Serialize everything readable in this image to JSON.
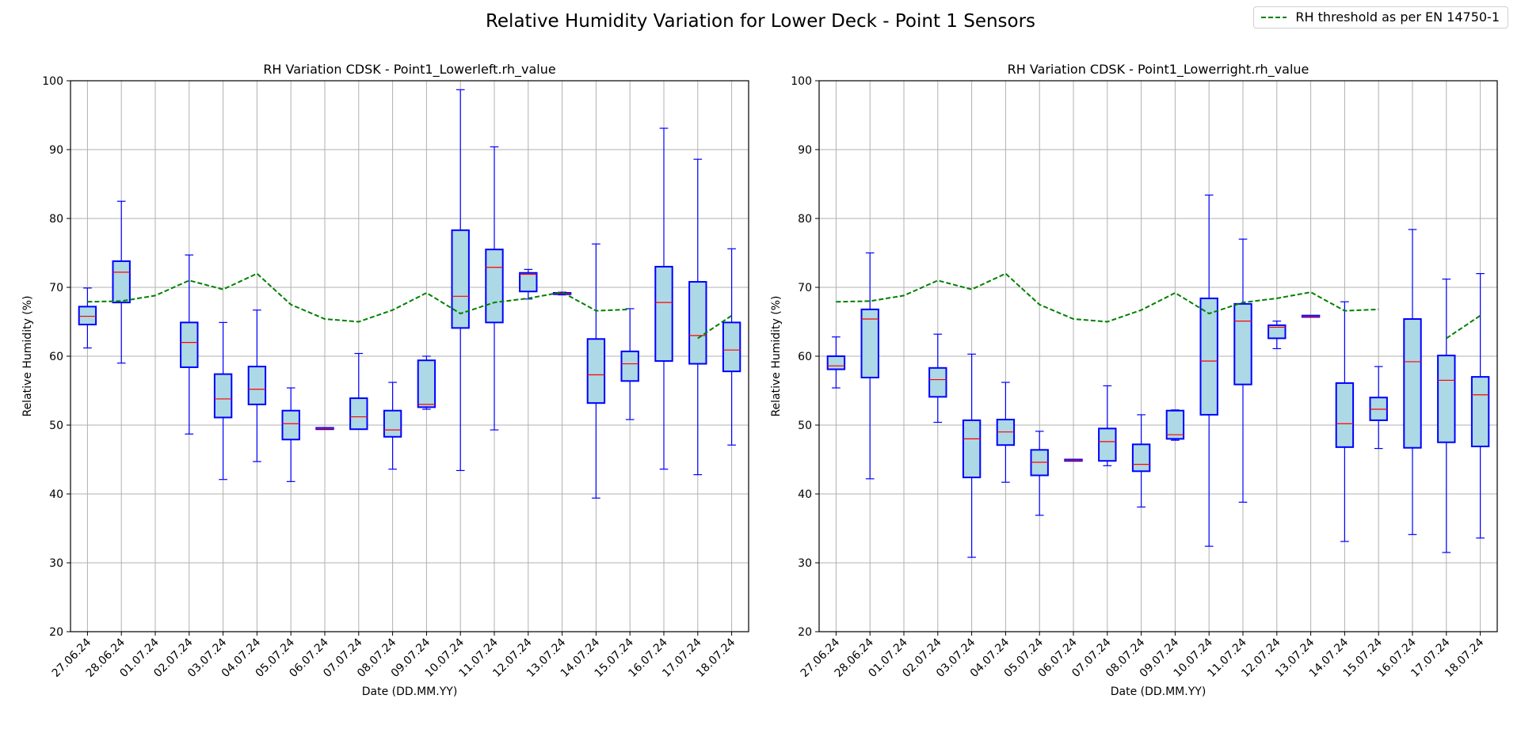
{
  "suptitle": "Relative Humidity Variation for Lower Deck - Point 1 Sensors",
  "legend": {
    "label": "RH threshold as per EN 14750-1",
    "color": "#008000",
    "placement": "upper right"
  },
  "style": {
    "box_fill": "#add8e6",
    "box_edge": "#0000ff",
    "median": "#ff0000",
    "grid": "#b0b0b0"
  },
  "chart_data": [
    {
      "type": "box",
      "title": "RH Variation CDSK - Point1_Lowerleft.rh_value",
      "xlabel": "Date (DD.MM.YY)",
      "ylabel": "Relative Humidity (%)",
      "ylim": [
        20,
        100
      ],
      "yticks": [
        20,
        30,
        40,
        50,
        60,
        70,
        80,
        90,
        100
      ],
      "grid": true,
      "categories": [
        "27.06.24",
        "28.06.24",
        "01.07.24",
        "02.07.24",
        "03.07.24",
        "04.07.24",
        "05.07.24",
        "06.07.24",
        "07.07.24",
        "08.07.24",
        "09.07.24",
        "10.07.24",
        "11.07.24",
        "12.07.24",
        "13.07.24",
        "14.07.24",
        "15.07.24",
        "16.07.24",
        "17.07.24",
        "18.07.24"
      ],
      "boxes": [
        {
          "whislo": 61.2,
          "q1": 64.6,
          "med": 65.8,
          "q3": 67.2,
          "whishi": 69.9
        },
        {
          "whislo": 59.0,
          "q1": 67.8,
          "med": 72.2,
          "q3": 73.8,
          "whishi": 82.5
        },
        null,
        {
          "whislo": 48.7,
          "q1": 58.4,
          "med": 62.0,
          "q3": 64.9,
          "whishi": 74.7
        },
        {
          "whislo": 42.1,
          "q1": 51.1,
          "med": 53.8,
          "q3": 57.4,
          "whishi": 64.9
        },
        {
          "whislo": 44.7,
          "q1": 53.0,
          "med": 55.2,
          "q3": 58.5,
          "whishi": 66.7
        },
        {
          "whislo": 41.8,
          "q1": 47.9,
          "med": 50.2,
          "q3": 52.1,
          "whishi": 55.4
        },
        {
          "whislo": 49.4,
          "q1": 49.4,
          "med": 49.5,
          "q3": 49.6,
          "whishi": 49.6
        },
        {
          "whislo": 49.4,
          "q1": 49.4,
          "med": 51.2,
          "q3": 53.9,
          "whishi": 60.4
        },
        {
          "whislo": 43.6,
          "q1": 48.3,
          "med": 49.3,
          "q3": 52.1,
          "whishi": 56.2
        },
        {
          "whislo": 52.3,
          "q1": 52.6,
          "med": 53.0,
          "q3": 59.4,
          "whishi": 60.0
        },
        {
          "whislo": 43.4,
          "q1": 64.1,
          "med": 68.7,
          "q3": 78.3,
          "whishi": 98.7
        },
        {
          "whislo": 49.3,
          "q1": 64.9,
          "med": 72.9,
          "q3": 75.5,
          "whishi": 90.4
        },
        {
          "whislo": 68.3,
          "q1": 69.4,
          "med": 71.9,
          "q3": 72.1,
          "whishi": 72.6
        },
        {
          "whislo": 68.9,
          "q1": 69.0,
          "med": 69.1,
          "q3": 69.2,
          "whishi": 69.3
        },
        {
          "whislo": 39.4,
          "q1": 53.2,
          "med": 57.3,
          "q3": 62.5,
          "whishi": 76.3
        },
        {
          "whislo": 50.8,
          "q1": 56.4,
          "med": 58.9,
          "q3": 60.7,
          "whishi": 66.9
        },
        {
          "whislo": 43.6,
          "q1": 59.3,
          "med": 67.8,
          "q3": 73.0,
          "whishi": 93.1
        },
        {
          "whislo": 42.8,
          "q1": 58.9,
          "med": 63.0,
          "q3": 70.8,
          "whishi": 88.6
        },
        {
          "whislo": 47.1,
          "q1": 57.8,
          "med": 60.9,
          "q3": 64.9,
          "whishi": 75.6
        }
      ],
      "threshold": [
        67.9,
        68.0,
        68.8,
        71.0,
        69.7,
        72.0,
        67.5,
        65.4,
        65.0,
        66.7,
        69.2,
        66.2,
        67.8,
        68.4,
        69.3,
        66.6,
        66.8,
        null,
        62.6,
        65.9
      ]
    },
    {
      "type": "box",
      "title": "RH Variation CDSK - Point1_Lowerright.rh_value",
      "xlabel": "Date (DD.MM.YY)",
      "ylabel": "Relative Humidity (%)",
      "ylim": [
        20,
        100
      ],
      "yticks": [
        20,
        30,
        40,
        50,
        60,
        70,
        80,
        90,
        100
      ],
      "grid": true,
      "categories": [
        "27.06.24",
        "28.06.24",
        "01.07.24",
        "02.07.24",
        "03.07.24",
        "04.07.24",
        "05.07.24",
        "06.07.24",
        "07.07.24",
        "08.07.24",
        "09.07.24",
        "10.07.24",
        "11.07.24",
        "12.07.24",
        "13.07.24",
        "14.07.24",
        "15.07.24",
        "16.07.24",
        "17.07.24",
        "18.07.24"
      ],
      "boxes": [
        {
          "whislo": 55.4,
          "q1": 58.1,
          "med": 58.6,
          "q3": 60.0,
          "whishi": 62.8
        },
        {
          "whislo": 42.2,
          "q1": 56.9,
          "med": 65.4,
          "q3": 66.8,
          "whishi": 75.0
        },
        null,
        {
          "whislo": 50.4,
          "q1": 54.1,
          "med": 56.6,
          "q3": 58.3,
          "whishi": 63.2
        },
        {
          "whislo": 30.8,
          "q1": 42.4,
          "med": 48.0,
          "q3": 50.7,
          "whishi": 60.3
        },
        {
          "whislo": 41.7,
          "q1": 47.1,
          "med": 49.0,
          "q3": 50.8,
          "whishi": 56.2
        },
        {
          "whislo": 36.9,
          "q1": 42.7,
          "med": 44.6,
          "q3": 46.4,
          "whishi": 49.1
        },
        {
          "whislo": 44.8,
          "q1": 44.8,
          "med": 44.9,
          "q3": 45.0,
          "whishi": 45.0
        },
        {
          "whislo": 44.1,
          "q1": 44.8,
          "med": 47.6,
          "q3": 49.5,
          "whishi": 55.7
        },
        {
          "whislo": 38.1,
          "q1": 43.3,
          "med": 44.3,
          "q3": 47.2,
          "whishi": 51.5
        },
        {
          "whislo": 47.8,
          "q1": 48.0,
          "med": 48.6,
          "q3": 52.1,
          "whishi": 52.2
        },
        {
          "whislo": 32.4,
          "q1": 51.5,
          "med": 59.3,
          "q3": 68.4,
          "whishi": 83.4
        },
        {
          "whislo": 38.8,
          "q1": 55.9,
          "med": 65.1,
          "q3": 67.6,
          "whishi": 77.0
        },
        {
          "whislo": 61.1,
          "q1": 62.6,
          "med": 64.2,
          "q3": 64.5,
          "whishi": 65.1
        },
        {
          "whislo": 65.7,
          "q1": 65.7,
          "med": 65.8,
          "q3": 65.9,
          "whishi": 65.9
        },
        {
          "whislo": 33.1,
          "q1": 46.8,
          "med": 50.2,
          "q3": 56.1,
          "whishi": 67.9
        },
        {
          "whislo": 46.6,
          "q1": 50.7,
          "med": 52.3,
          "q3": 54.0,
          "whishi": 58.5
        },
        {
          "whislo": 34.1,
          "q1": 46.7,
          "med": 59.2,
          "q3": 65.4,
          "whishi": 78.4
        },
        {
          "whislo": 31.5,
          "q1": 47.5,
          "med": 56.5,
          "q3": 60.1,
          "whishi": 71.2
        },
        {
          "whislo": 33.6,
          "q1": 46.9,
          "med": 54.4,
          "q3": 57.0,
          "whishi": 72.0
        }
      ],
      "threshold": [
        67.9,
        68.0,
        68.8,
        71.0,
        69.7,
        72.0,
        67.5,
        65.4,
        65.0,
        66.7,
        69.2,
        66.2,
        67.8,
        68.4,
        69.3,
        66.6,
        66.8,
        null,
        62.6,
        65.9
      ]
    }
  ]
}
